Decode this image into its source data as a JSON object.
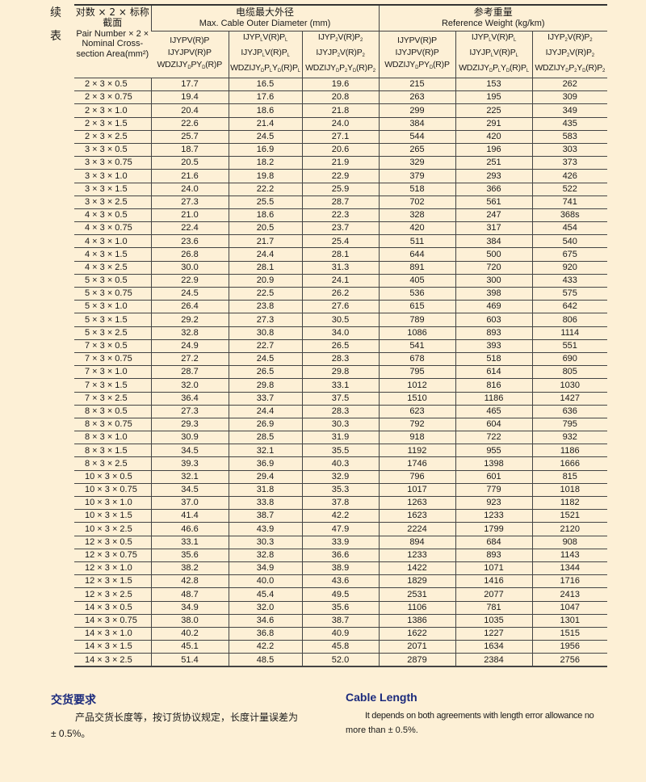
{
  "side_label": [
    "续",
    "表"
  ],
  "header": {
    "stub": {
      "cn1": "对数 × 2 × 标称",
      "cn2": "截面",
      "en": [
        "Pair Number × 2 ×",
        "Nominal Cross-",
        "section Area(mm²)"
      ]
    },
    "groups": [
      {
        "cn": "电缆最大外径",
        "en": "Max. Cable Outer Diameter (mm)"
      },
      {
        "cn": "参考重量",
        "en": "Reference Weight  (kg/km)"
      }
    ],
    "models": [
      [
        [
          "IJYPV(R)P"
        ],
        [
          "IJYJPV(R)P"
        ],
        [
          "WDZIJY",
          {
            "sub": "D"
          },
          "PY",
          {
            "sub": "D"
          },
          "(R)P"
        ]
      ],
      [
        [
          "IJYP",
          {
            "sub": "L"
          },
          "V(R)P",
          {
            "sub": "L"
          }
        ],
        [
          "IJYJP",
          {
            "sub": "L"
          },
          "V(R)P",
          {
            "sub": "L"
          }
        ],
        [
          "WDZIJY",
          {
            "sub": "D"
          },
          "P",
          {
            "sub": "L"
          },
          "Y",
          {
            "sub": "D"
          },
          "(R)P",
          {
            "sub": "L"
          }
        ]
      ],
      [
        [
          "IJYP",
          {
            "sub": "2"
          },
          "V(R)P",
          {
            "sub": "2"
          }
        ],
        [
          "IJYJP",
          {
            "sub": "2"
          },
          "V(R)P",
          {
            "sub": "2"
          }
        ],
        [
          "WDZIJY",
          {
            "sub": "D"
          },
          "P",
          {
            "sub": "2"
          },
          "Y",
          {
            "sub": "D"
          },
          "(R)P",
          {
            "sub": "2"
          }
        ]
      ],
      [
        [
          "IJYPV(R)P"
        ],
        [
          "IJYJPV(R)P"
        ],
        [
          "WDZIJY",
          {
            "sub": "D"
          },
          "PY",
          {
            "sub": "D"
          },
          "(R)P"
        ]
      ],
      [
        [
          "IJYP",
          {
            "sub": "L"
          },
          "V(R)P",
          {
            "sub": "L"
          }
        ],
        [
          "IJYJP",
          {
            "sub": "L"
          },
          "V(R)P",
          {
            "sub": "L"
          }
        ],
        [
          "WDZIJY",
          {
            "sub": "D"
          },
          "P",
          {
            "sub": "L"
          },
          "Y",
          {
            "sub": "D"
          },
          "(R)P",
          {
            "sub": "L"
          }
        ]
      ],
      [
        [
          "IJYP",
          {
            "sub": "2"
          },
          "V(R)P",
          {
            "sub": "2"
          }
        ],
        [
          "IJYJP",
          {
            "sub": "2"
          },
          "V(R)P",
          {
            "sub": "2"
          }
        ],
        [
          "WDZIJY",
          {
            "sub": "D"
          },
          "P",
          {
            "sub": "2"
          },
          "Y",
          {
            "sub": "D"
          },
          "(R)P",
          {
            "sub": "2"
          }
        ]
      ]
    ]
  },
  "rows": [
    [
      "2 × 3 × 0.5",
      "17.7",
      "16.5",
      "19.6",
      "215",
      "153",
      "262"
    ],
    [
      "2 × 3 × 0.75",
      "19.4",
      "17.6",
      "20.8",
      "263",
      "195",
      "309"
    ],
    [
      "2 × 3 × 1.0",
      "20.4",
      "18.6",
      "21.8",
      "299",
      "225",
      "349"
    ],
    [
      "2 × 3 × 1.5",
      "22.6",
      "21.4",
      "24.0",
      "384",
      "291",
      "435"
    ],
    [
      "2 × 3 × 2.5",
      "25.7",
      "24.5",
      "27.1",
      "544",
      "420",
      "583"
    ],
    [
      "3 × 3 × 0.5",
      "18.7",
      "16.9",
      "20.6",
      "265",
      "196",
      "303"
    ],
    [
      "3 × 3 × 0.75",
      "20.5",
      "18.2",
      "21.9",
      "329",
      "251",
      "373"
    ],
    [
      "3 × 3 × 1.0",
      "21.6",
      "19.8",
      "22.9",
      "379",
      "293",
      "426"
    ],
    [
      "3 × 3 × 1.5",
      "24.0",
      "22.2",
      "25.9",
      "518",
      "366",
      "522"
    ],
    [
      "3 × 3 × 2.5",
      "27.3",
      "25.5",
      "28.7",
      "702",
      "561",
      "741"
    ],
    [
      "4 × 3 × 0.5",
      "21.0",
      "18.6",
      "22.3",
      "328",
      "247",
      "368s"
    ],
    [
      "4 × 3 × 0.75",
      "22.4",
      "20.5",
      "23.7",
      "420",
      "317",
      "454"
    ],
    [
      "4 × 3 × 1.0",
      "23.6",
      "21.7",
      "25.4",
      "511",
      "384",
      "540"
    ],
    [
      "4 × 3 × 1.5",
      "26.8",
      "24.4",
      "28.1",
      "644",
      "500",
      "675"
    ],
    [
      "4 × 3 × 2.5",
      "30.0",
      "28.1",
      "31.3",
      "891",
      "720",
      "920"
    ],
    [
      "5 × 3 × 0.5",
      "22.9",
      "20.9",
      "24.1",
      "405",
      "300",
      "433"
    ],
    [
      "5 × 3 × 0.75",
      "24.5",
      "22.5",
      "26.2",
      "536",
      "398",
      "575"
    ],
    [
      "5 × 3 × 1.0",
      "26.4",
      "23.8",
      "27.6",
      "615",
      "469",
      "642"
    ],
    [
      "5 × 3 × 1.5",
      "29.2",
      "27.3",
      "30.5",
      "789",
      "603",
      "806"
    ],
    [
      "5 × 3 × 2.5",
      "32.8",
      "30.8",
      "34.0",
      "1086",
      "893",
      "1114"
    ],
    [
      "7 × 3 × 0.5",
      "24.9",
      "22.7",
      "26.5",
      "541",
      "393",
      "551"
    ],
    [
      "7 × 3 × 0.75",
      "27.2",
      "24.5",
      "28.3",
      "678",
      "518",
      "690"
    ],
    [
      "7 × 3 × 1.0",
      "28.7",
      "26.5",
      "29.8",
      "795",
      "614",
      "805"
    ],
    [
      "7 × 3 × 1.5",
      "32.0",
      "29.8",
      "33.1",
      "1012",
      "816",
      "1030"
    ],
    [
      "7 × 3 × 2.5",
      "36.4",
      "33.7",
      "37.5",
      "1510",
      "1186",
      "1427"
    ],
    [
      "8 × 3 × 0.5",
      "27.3",
      "24.4",
      "28.3",
      "623",
      "465",
      "636"
    ],
    [
      "8 × 3 × 0.75",
      "29.3",
      "26.9",
      "30.3",
      "792",
      "604",
      "795"
    ],
    [
      "8 × 3 × 1.0",
      "30.9",
      "28.5",
      "31.9",
      "918",
      "722",
      "932"
    ],
    [
      "8 × 3 × 1.5",
      "34.5",
      "32.1",
      "35.5",
      "1192",
      "955",
      "1186"
    ],
    [
      "8 × 3 × 2.5",
      "39.3",
      "36.9",
      "40.3",
      "1746",
      "1398",
      "1666"
    ],
    [
      "10 × 3 × 0.5",
      "32.1",
      "29.4",
      "32.9",
      "796",
      "601",
      "815"
    ],
    [
      "10 × 3 × 0.75",
      "34.5",
      "31.8",
      "35.3",
      "1017",
      "779",
      "1018"
    ],
    [
      "10 × 3 × 1.0",
      "37.0",
      "33.8",
      "37.8",
      "1263",
      "923",
      "1182"
    ],
    [
      "10 × 3 × 1.5",
      "41.4",
      "38.7",
      "42.2",
      "1623",
      "1233",
      "1521"
    ],
    [
      "10 × 3 × 2.5",
      "46.6",
      "43.9",
      "47.9",
      "2224",
      "1799",
      "2120"
    ],
    [
      "12 × 3 × 0.5",
      "33.1",
      "30.3",
      "33.9",
      "894",
      "684",
      "908"
    ],
    [
      "12 × 3 × 0.75",
      "35.6",
      "32.8",
      "36.6",
      "1233",
      "893",
      "1143"
    ],
    [
      "12 × 3 × 1.0",
      "38.2",
      "34.9",
      "38.9",
      "1422",
      "1071",
      "1344"
    ],
    [
      "12 × 3 × 1.5",
      "42.8",
      "40.0",
      "43.6",
      "1829",
      "1416",
      "1716"
    ],
    [
      "12 × 3 × 2.5",
      "48.7",
      "45.4",
      "49.5",
      "2531",
      "2077",
      "2413"
    ],
    [
      "14 × 3 × 0.5",
      "34.9",
      "32.0",
      "35.6",
      "1106",
      "781",
      "1047"
    ],
    [
      "14 × 3 × 0.75",
      "38.0",
      "34.6",
      "38.7",
      "1386",
      "1035",
      "1301"
    ],
    [
      "14 × 3 × 1.0",
      "40.2",
      "36.8",
      "40.9",
      "1622",
      "1227",
      "1515"
    ],
    [
      "14 × 3 × 1.5",
      "45.1",
      "42.2",
      "45.8",
      "2071",
      "1634",
      "1956"
    ],
    [
      "14 × 3 × 2.5",
      "51.4",
      "48.5",
      "52.0",
      "2879",
      "2384",
      "2756"
    ]
  ],
  "footer": {
    "cn_title": "交货要求",
    "cn_text1": "产品交货长度等，按订货协议规定，长度计量误差为",
    "cn_text2": "± 0.5%。",
    "en_title": "Cable Length",
    "en_text1": "It depends on both agreements with length error allowance no",
    "en_text2": "more than  ± 0.5%."
  },
  "colors": {
    "background": "#fdf0d6",
    "heading": "#1b2a7c"
  }
}
